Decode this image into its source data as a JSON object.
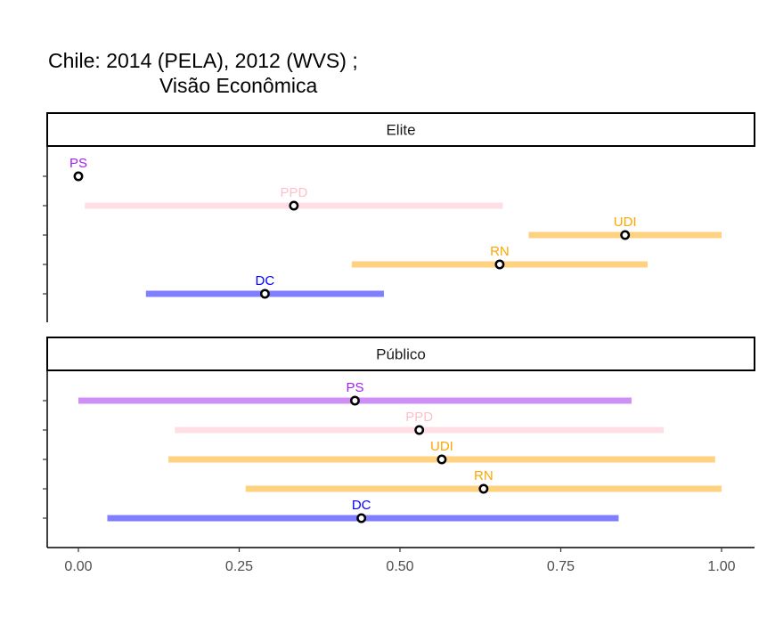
{
  "title": {
    "line1": "Chile: 2014 (PELA), 2012 (WVS) ;",
    "line2": "Visão Econômica"
  },
  "chart_data": {
    "type": "interval",
    "x": {
      "range": [
        -0.05,
        1.05
      ],
      "ticks": [
        0,
        0.25,
        0.5,
        0.75,
        1
      ],
      "tick_labels": [
        "0.00",
        "0.25",
        "0.50",
        "0.75",
        "1.00"
      ]
    },
    "colors": {
      "PS": "#a020f0",
      "PPD": "#ffc0cb",
      "UDI": "#ffa500",
      "RN": "#ffa500",
      "DC": "#0000ff"
    },
    "panels": [
      {
        "label": "Elite",
        "rows": [
          {
            "party": "PS",
            "point": 0.0,
            "low": null,
            "high": null
          },
          {
            "party": "PPD",
            "point": 0.335,
            "low": 0.01,
            "high": 0.66
          },
          {
            "party": "UDI",
            "point": 0.85,
            "low": 0.7,
            "high": 1.0
          },
          {
            "party": "RN",
            "point": 0.655,
            "low": 0.425,
            "high": 0.885
          },
          {
            "party": "DC",
            "point": 0.29,
            "low": 0.105,
            "high": 0.475
          }
        ]
      },
      {
        "label": "Público",
        "rows": [
          {
            "party": "PS",
            "point": 0.43,
            "low": 0.0,
            "high": 0.86
          },
          {
            "party": "PPD",
            "point": 0.53,
            "low": 0.15,
            "high": 0.91
          },
          {
            "party": "UDI",
            "point": 0.565,
            "low": 0.14,
            "high": 0.99
          },
          {
            "party": "RN",
            "point": 0.63,
            "low": 0.26,
            "high": 1.0
          },
          {
            "party": "DC",
            "point": 0.44,
            "low": 0.045,
            "high": 0.84
          }
        ]
      }
    ]
  }
}
